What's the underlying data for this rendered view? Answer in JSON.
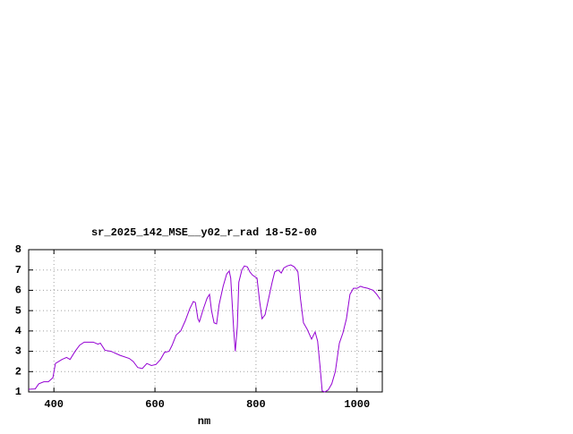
{
  "chart_data": {
    "type": "line",
    "title": "sr_2025_142_MSE__y02_r_rad 18-52-00",
    "x_label": "nm",
    "xlim": [
      350,
      1050
    ],
    "ylim": [
      1,
      8
    ],
    "xticks": [
      400,
      600,
      800,
      1000
    ],
    "yticks": [
      1,
      2,
      3,
      4,
      5,
      6,
      7,
      8
    ],
    "grid": true,
    "series": [
      {
        "color": "#9400d3",
        "x": [
          350,
          363,
          370,
          380,
          389,
          398,
          403,
          416,
          425,
          432,
          442,
          451,
          460,
          478,
          487,
          492,
          501,
          513,
          531,
          549,
          557,
          566,
          575,
          584,
          593,
          602,
          611,
          619,
          628,
          634,
          642,
          651,
          660,
          669,
          676,
          680,
          685,
          688,
          696,
          703,
          708,
          712,
          717,
          722,
          727,
          735,
          742,
          747,
          750,
          756,
          759,
          763,
          766,
          772,
          777,
          783,
          788,
          793,
          802,
          807,
          812,
          818,
          825,
          832,
          837,
          844,
          850,
          855,
          862,
          869,
          876,
          883,
          888,
          894,
          901,
          910,
          917,
          922,
          927,
          931,
          936,
          943,
          950,
          957,
          965,
          972,
          979,
          986,
          993,
          1000,
          1007,
          1012,
          1021,
          1032,
          1039,
          1046
        ],
        "values": [
          1.13,
          1.15,
          1.4,
          1.5,
          1.5,
          1.7,
          2.4,
          2.6,
          2.7,
          2.6,
          3.0,
          3.3,
          3.45,
          3.45,
          3.35,
          3.4,
          3.05,
          3.0,
          2.8,
          2.65,
          2.5,
          2.2,
          2.15,
          2.4,
          2.3,
          2.35,
          2.6,
          2.95,
          3.0,
          3.3,
          3.8,
          4.0,
          4.5,
          5.1,
          5.45,
          5.4,
          4.6,
          4.45,
          5.1,
          5.6,
          5.8,
          5.0,
          4.4,
          4.35,
          5.3,
          6.2,
          6.8,
          6.95,
          6.6,
          4.0,
          3.0,
          4.2,
          6.4,
          7.0,
          7.2,
          7.15,
          6.9,
          6.75,
          6.6,
          5.5,
          4.6,
          4.8,
          5.6,
          6.4,
          6.9,
          7.0,
          6.85,
          7.1,
          7.2,
          7.25,
          7.15,
          6.9,
          5.6,
          4.4,
          4.1,
          3.6,
          3.95,
          3.5,
          2.2,
          1.05,
          1.0,
          1.1,
          1.4,
          2.0,
          3.4,
          3.9,
          4.6,
          5.8,
          6.1,
          6.1,
          6.2,
          6.15,
          6.1,
          6.0,
          5.8,
          5.55
        ]
      }
    ]
  }
}
